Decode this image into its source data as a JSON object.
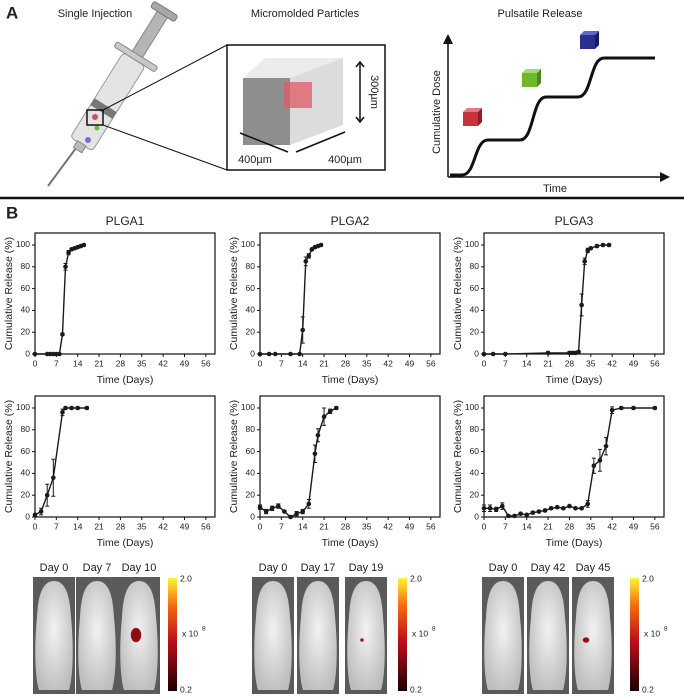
{
  "figure": {
    "panel_a": {
      "letter": "A",
      "injection": "Single Injection",
      "particles": "Micromolded Particles",
      "release": "Pulsatile Release",
      "height_label": "300µm",
      "width_label_left": "400µm",
      "width_label_right": "400µm",
      "y_axis": "Cumulative Dose",
      "x_axis": "Time"
    },
    "panel_b": {
      "letter": "B"
    }
  },
  "chart_data": [
    {
      "type": "line",
      "title": "PLGA1",
      "xlabel": "Time (Days)",
      "ylabel": "Cumulative Release (%)",
      "color": "#1a1a1a",
      "x": [
        0,
        4,
        5,
        6,
        7,
        8,
        9,
        10,
        11,
        12,
        13,
        14,
        15,
        16
      ],
      "values": [
        0,
        0,
        0,
        0,
        0,
        0,
        18,
        80,
        93,
        96,
        97,
        98,
        99,
        100
      ],
      "errors": [
        0,
        0,
        0,
        0,
        0,
        0,
        1,
        3,
        2,
        1,
        1,
        1,
        1,
        1
      ],
      "xlim": [
        0,
        59
      ],
      "ylim": [
        0,
        111
      ],
      "xticks": [
        0,
        7,
        14,
        21,
        28,
        35,
        42,
        49,
        56
      ],
      "yticks": [
        0,
        20,
        40,
        60,
        80,
        100
      ]
    },
    {
      "type": "line",
      "title": "PLGA2",
      "xlabel": "Time (Days)",
      "ylabel": "Cumulative Release (%)",
      "color": "#1a1a1a",
      "x": [
        0,
        3,
        5,
        10,
        13,
        14,
        15,
        16,
        17,
        18,
        19,
        20
      ],
      "values": [
        0,
        0,
        0,
        0,
        0,
        22,
        85,
        90,
        96,
        98,
        99,
        100
      ],
      "errors": [
        0,
        0,
        0,
        0,
        0,
        12,
        4,
        2,
        1,
        1,
        1,
        1
      ],
      "xlim": [
        0,
        59
      ],
      "ylim": [
        0,
        111
      ],
      "xticks": [
        0,
        7,
        14,
        21,
        28,
        35,
        42,
        49,
        56
      ],
      "yticks": [
        0,
        20,
        40,
        60,
        80,
        100
      ]
    },
    {
      "type": "line",
      "title": "PLGA3",
      "xlabel": "Time (Days)",
      "ylabel": "Cumulative Release (%)",
      "color": "#1a1a1a",
      "x": [
        0,
        3,
        7,
        21,
        28,
        29,
        30,
        31,
        32,
        33,
        34,
        35,
        37,
        39,
        41
      ],
      "values": [
        0,
        0,
        0,
        1,
        1,
        1,
        1,
        2,
        45,
        85,
        95,
        97,
        99,
        100,
        100
      ],
      "errors": [
        0,
        0,
        0,
        1,
        1,
        1,
        1,
        1,
        10,
        3,
        2,
        1,
        1,
        1,
        1
      ],
      "xlim": [
        0,
        59
      ],
      "ylim": [
        0,
        111
      ],
      "xticks": [
        0,
        7,
        14,
        21,
        28,
        35,
        42,
        49,
        56
      ],
      "yticks": [
        0,
        20,
        40,
        60,
        80,
        100
      ]
    },
    {
      "type": "line",
      "xlabel": "Time (Days)",
      "ylabel": "Cumulative Release (%)",
      "color": "#1a1a1a",
      "x": [
        0,
        2,
        4,
        6,
        9,
        10,
        12,
        14,
        17
      ],
      "values": [
        2,
        5,
        20,
        36,
        96,
        100,
        100,
        100,
        100
      ],
      "errors": [
        1,
        3,
        10,
        17,
        3,
        1,
        1,
        1,
        1
      ],
      "xlim": [
        0,
        59
      ],
      "ylim": [
        0,
        111
      ],
      "xticks": [
        0,
        7,
        14,
        21,
        28,
        35,
        42,
        49,
        56
      ],
      "yticks": [
        0,
        20,
        40,
        60,
        80,
        100
      ]
    },
    {
      "type": "line",
      "xlabel": "Time (Days)",
      "ylabel": "Cumulative Release (%)",
      "color": "#1a1a1a",
      "x": [
        0,
        2,
        4,
        6,
        8,
        10,
        12,
        14,
        16,
        18,
        19,
        21,
        23,
        25
      ],
      "values": [
        9,
        5,
        8,
        10,
        5,
        0,
        3,
        5,
        12,
        58,
        75,
        92,
        97,
        100
      ],
      "errors": [
        2,
        2,
        2,
        2,
        1,
        1,
        2,
        2,
        4,
        8,
        6,
        8,
        2,
        1
      ],
      "xlim": [
        0,
        59
      ],
      "ylim": [
        0,
        111
      ],
      "xticks": [
        0,
        7,
        14,
        21,
        28,
        35,
        42,
        49,
        56
      ],
      "yticks": [
        0,
        20,
        40,
        60,
        80,
        100
      ]
    },
    {
      "type": "line",
      "xlabel": "Time (Days)",
      "ylabel": "Cumulative Release (%)",
      "color": "#1a1a1a",
      "x": [
        0,
        2,
        4,
        6,
        8,
        10,
        12,
        14,
        16,
        18,
        20,
        22,
        24,
        26,
        28,
        30,
        32,
        34,
        36,
        38,
        40,
        42,
        45,
        49,
        56
      ],
      "values": [
        8,
        8,
        7,
        10,
        1,
        1,
        3,
        2,
        4,
        5,
        6,
        8,
        9,
        8,
        10,
        8,
        8,
        12,
        47,
        52,
        65,
        98,
        100,
        100,
        100
      ],
      "errors": [
        3,
        3,
        2,
        3,
        1,
        1,
        1,
        1,
        1,
        1,
        1,
        1,
        1,
        1,
        1,
        1,
        1,
        3,
        7,
        10,
        8,
        3,
        1,
        1,
        1
      ],
      "xlim": [
        0,
        59
      ],
      "ylim": [
        0,
        111
      ],
      "xticks": [
        0,
        7,
        14,
        21,
        28,
        35,
        42,
        49,
        56
      ],
      "yticks": [
        0,
        20,
        40,
        60,
        80,
        100
      ]
    }
  ],
  "imaging": {
    "groups": [
      {
        "days": [
          "Day 0",
          "Day 7",
          "Day 10"
        ],
        "colorbar": {
          "max": "2.0",
          "min": "0.2",
          "unit": "x 10",
          "exponent": "8"
        }
      },
      {
        "days": [
          "Day 0",
          "Day 17",
          "Day 19"
        ],
        "colorbar": {
          "max": "2.0",
          "min": "0.2",
          "unit": "x 10",
          "exponent": "8"
        }
      },
      {
        "days": [
          "Day 0",
          "Day 42",
          "Day 45"
        ],
        "colorbar": {
          "max": "2.0",
          "min": "0.2",
          "unit": "x 10",
          "exponent": "8"
        }
      }
    ]
  }
}
